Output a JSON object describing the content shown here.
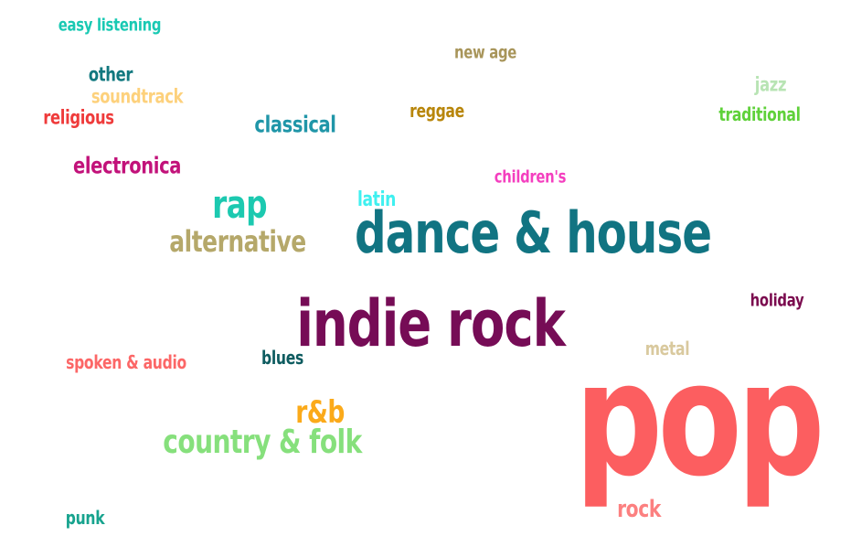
{
  "words": [
    {
      "text": "easy listening",
      "color": "#19c9b3",
      "weight": 2
    },
    {
      "text": "new age",
      "color": "#a8955a",
      "weight": 2
    },
    {
      "text": "other",
      "color": "#11787f",
      "weight": 2
    },
    {
      "text": "jazz",
      "color": "#b8e4b4",
      "weight": 2
    },
    {
      "text": "soundtrack",
      "color": "#fdd17c",
      "weight": 2
    },
    {
      "text": "reggae",
      "color": "#b8860b",
      "weight": 2
    },
    {
      "text": "religious",
      "color": "#ef3b3b",
      "weight": 2
    },
    {
      "text": "traditional",
      "color": "#5fd13a",
      "weight": 2
    },
    {
      "text": "classical",
      "color": "#2096a8",
      "weight": 3
    },
    {
      "text": "electronica",
      "color": "#c2127a",
      "weight": 3
    },
    {
      "text": "children's",
      "color": "#f43fbf",
      "weight": 2
    },
    {
      "text": "rap",
      "color": "#1cc9b0",
      "weight": 5
    },
    {
      "text": "latin",
      "color": "#3ff0f0",
      "weight": 2
    },
    {
      "text": "dance & house",
      "color": "#117482",
      "weight": 8
    },
    {
      "text": "alternative",
      "color": "#b5a86a",
      "weight": 4
    },
    {
      "text": "holiday",
      "color": "#7a0a4e",
      "weight": 2
    },
    {
      "text": "indie rock",
      "color": "#760c56",
      "weight": 9
    },
    {
      "text": "metal",
      "color": "#d9c99e",
      "weight": 2
    },
    {
      "text": "spoken & audio",
      "color": "#fc6767",
      "weight": 2
    },
    {
      "text": "blues",
      "color": "#0e5c60",
      "weight": 2
    },
    {
      "text": "pop",
      "color": "#fc5e60",
      "weight": 20
    },
    {
      "text": "r&b",
      "color": "#fbaa1a",
      "weight": 4
    },
    {
      "text": "country & folk",
      "color": "#86e07c",
      "weight": 5
    },
    {
      "text": "rock",
      "color": "#fc8080",
      "weight": 3
    },
    {
      "text": "punk",
      "color": "#17a38e",
      "weight": 2
    }
  ]
}
